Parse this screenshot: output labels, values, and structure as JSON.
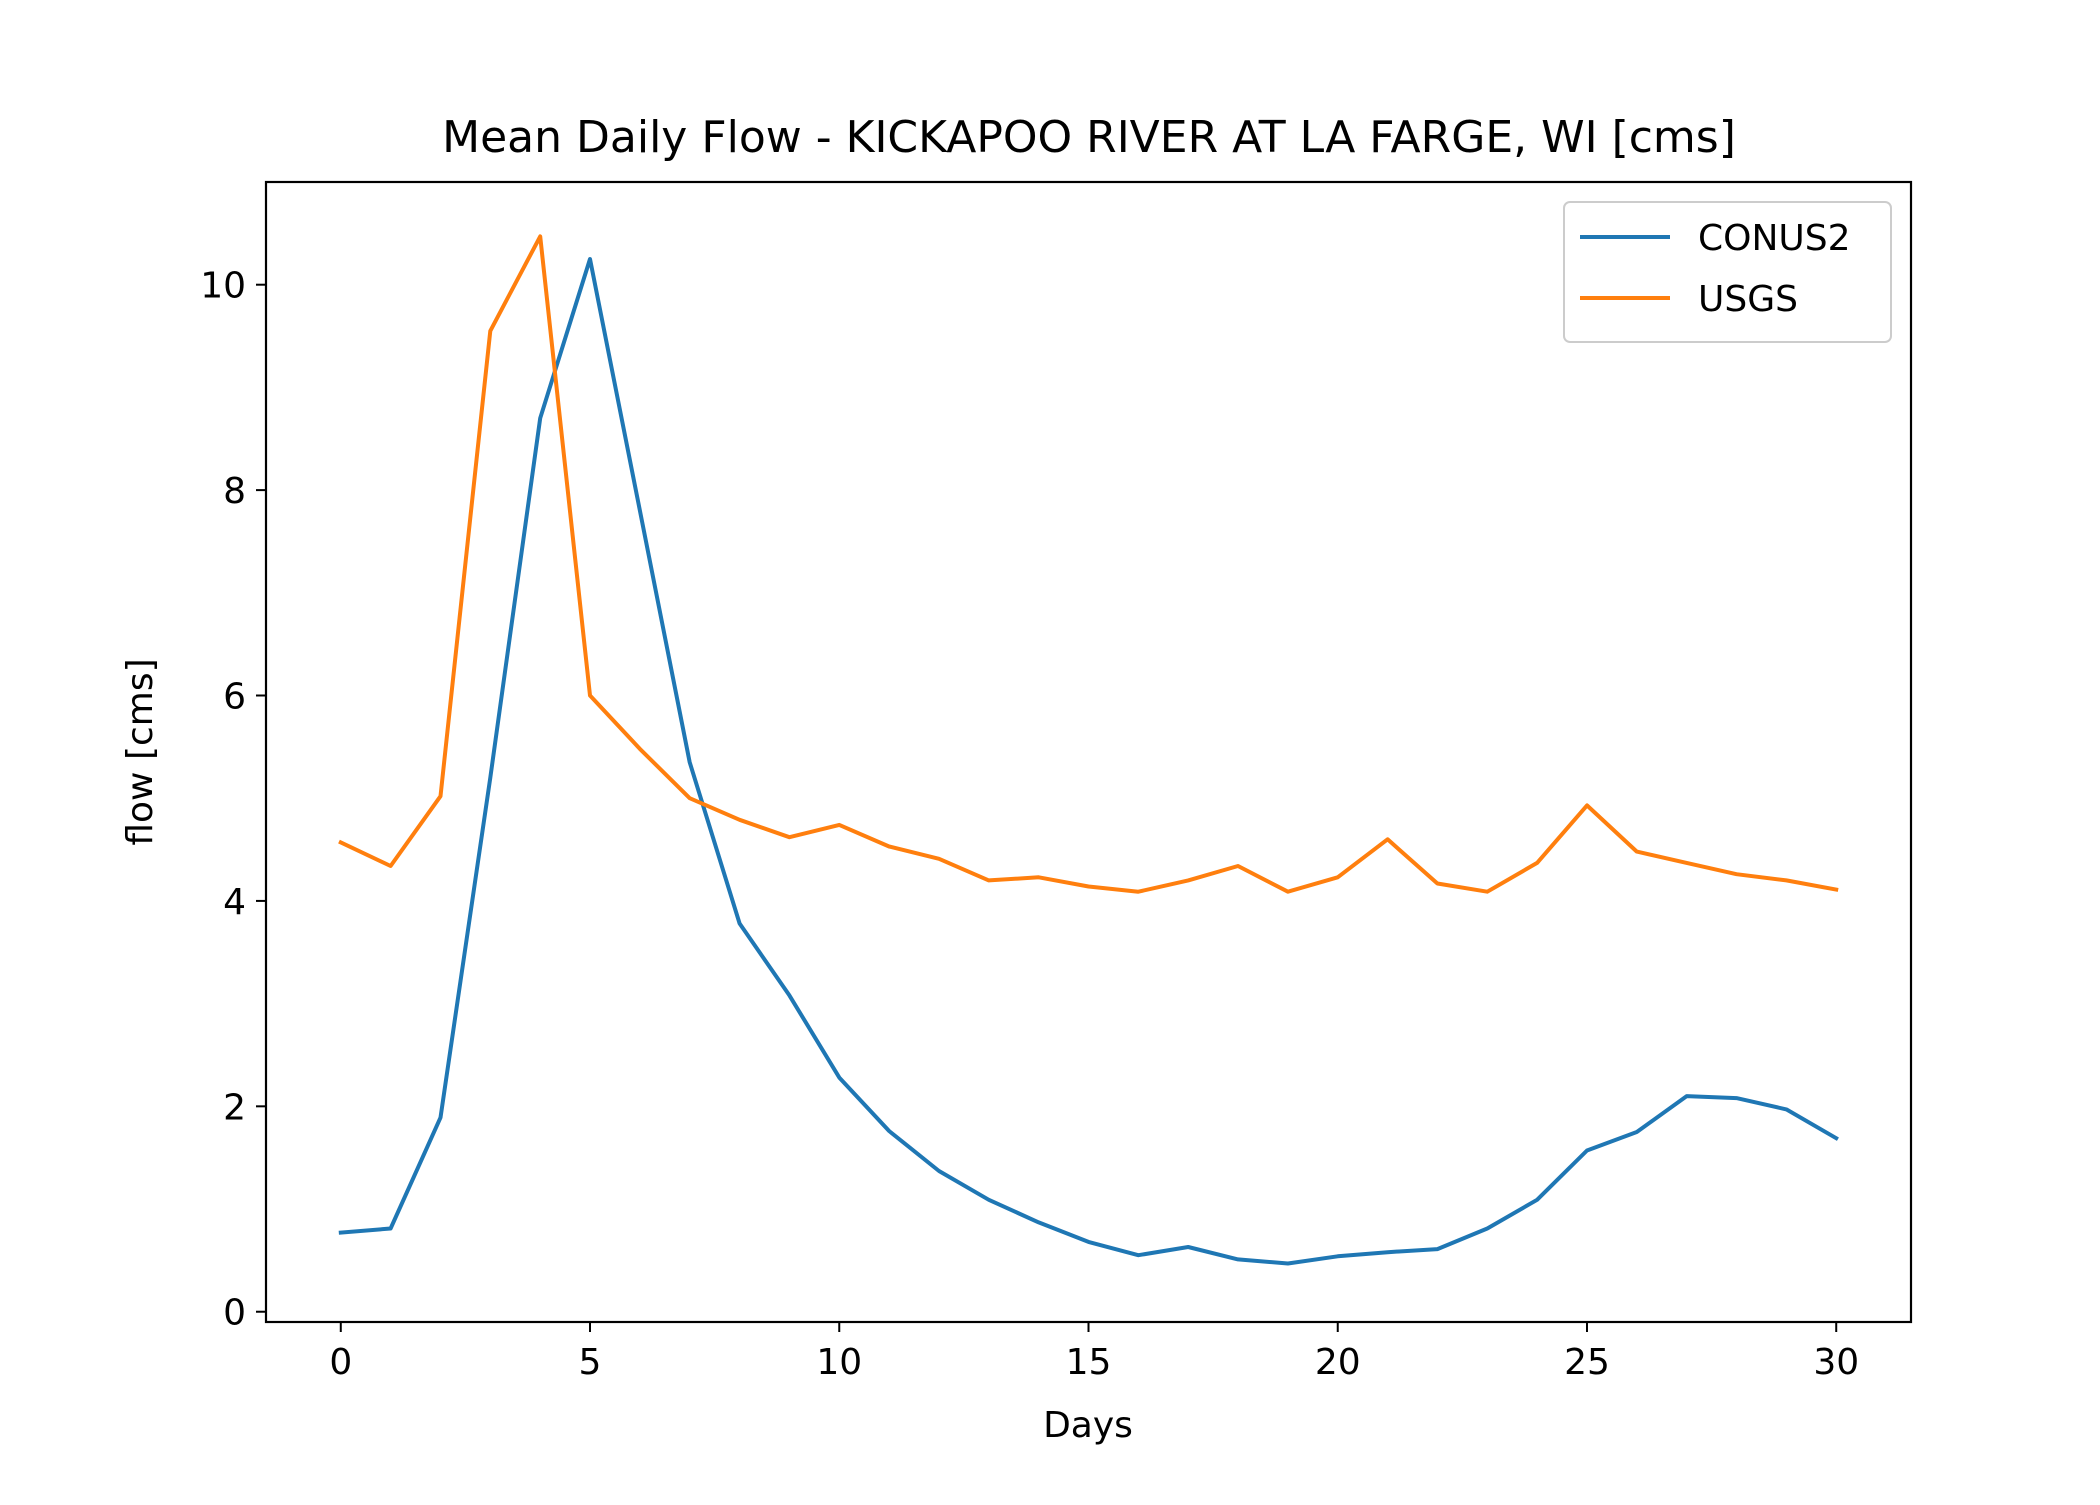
{
  "chart_data": {
    "type": "line",
    "title": "Mean Daily Flow - KICKAPOO RIVER AT LA FARGE, WI [cms]",
    "xlabel": "Days",
    "ylabel": "flow [cms]",
    "xlim": [
      -1.5,
      31.5
    ],
    "ylim": [
      -0.1,
      11.0
    ],
    "x_ticks": [
      0,
      5,
      10,
      15,
      20,
      25,
      30
    ],
    "x_tick_labels": [
      "0",
      "5",
      "10",
      "15",
      "20",
      "25",
      "30"
    ],
    "y_ticks": [
      0,
      2,
      4,
      6,
      8,
      10
    ],
    "y_tick_labels": [
      "0",
      "2",
      "4",
      "6",
      "8",
      "10"
    ],
    "grid": false,
    "legend_position": "top-right",
    "x": [
      0,
      1,
      2,
      3,
      4,
      5,
      6,
      7,
      8,
      9,
      10,
      11,
      12,
      13,
      14,
      15,
      16,
      17,
      18,
      19,
      20,
      21,
      22,
      23,
      24,
      25,
      26,
      27,
      28,
      29,
      30
    ],
    "series": [
      {
        "name": "CONUS2",
        "color": "#1f77b4",
        "values": [
          0.77,
          0.81,
          1.89,
          5.2,
          8.7,
          10.25,
          7.8,
          5.35,
          3.78,
          3.08,
          2.28,
          1.76,
          1.37,
          1.09,
          0.87,
          0.68,
          0.55,
          0.63,
          0.51,
          0.47,
          0.54,
          0.58,
          0.61,
          0.81,
          1.09,
          1.57,
          1.75,
          2.1,
          2.08,
          1.97,
          1.69
        ]
      },
      {
        "name": "USGS",
        "color": "#ff7f0e",
        "values": [
          4.57,
          4.34,
          5.02,
          9.55,
          10.47,
          6.0,
          5.48,
          5.0,
          4.79,
          4.62,
          4.74,
          4.53,
          4.41,
          4.2,
          4.23,
          4.14,
          4.09,
          4.2,
          4.34,
          4.09,
          4.23,
          4.6,
          4.17,
          4.09,
          4.37,
          4.93,
          4.48,
          4.37,
          4.26,
          4.2,
          4.11
        ]
      }
    ]
  }
}
